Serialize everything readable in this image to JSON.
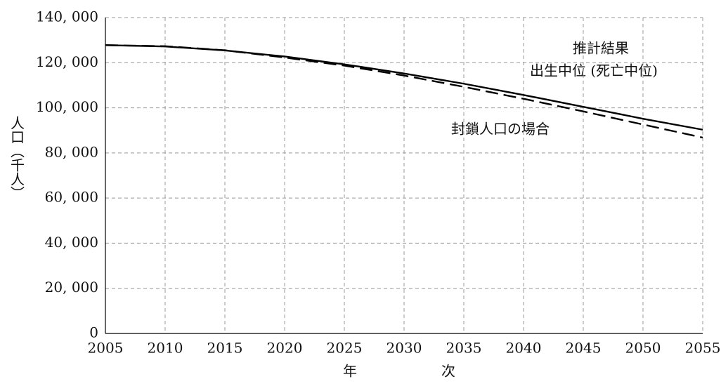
{
  "chart_data": {
    "type": "line",
    "x": [
      2005,
      2010,
      2015,
      2020,
      2025,
      2030,
      2035,
      2040,
      2045,
      2050,
      2055
    ],
    "series": [
      {
        "color": "#000000",
        "dash": "solid",
        "values": [
          127768,
          127176,
          125430,
          122735,
          119270,
          115224,
          110679,
          105695,
          100443,
          95152,
          90300
        ]
      },
      {
        "color": "#000000",
        "dash": "dashed",
        "values": [
          127768,
          127300,
          125500,
          122300,
          118700,
          114300,
          109300,
          104000,
          98400,
          92600,
          86800
        ]
      }
    ],
    "annotations": [
      "推計結果",
      "出生中位 (死亡中位)",
      "封鎖人口の場合"
    ],
    "xlabel": "年　　　　　　次",
    "ylabel": "人口（千人）",
    "xlim": [
      2005,
      2055
    ],
    "ylim": [
      0,
      140000
    ],
    "xticks": [
      2005,
      2010,
      2015,
      2020,
      2025,
      2030,
      2035,
      2040,
      2045,
      2050,
      2055
    ],
    "yticks": [
      0,
      {
        "value": 20000,
        "label": "20, 000"
      },
      {
        "value": 40000,
        "label": "40, 000"
      },
      {
        "value": 60000,
        "label": "60, 000"
      },
      {
        "value": 80000,
        "label": "80, 000"
      },
      {
        "value": 100000,
        "label": "100, 000"
      },
      {
        "value": 120000,
        "label": "120, 000"
      },
      {
        "value": 140000,
        "label": "140, 000"
      }
    ],
    "grid": true
  }
}
